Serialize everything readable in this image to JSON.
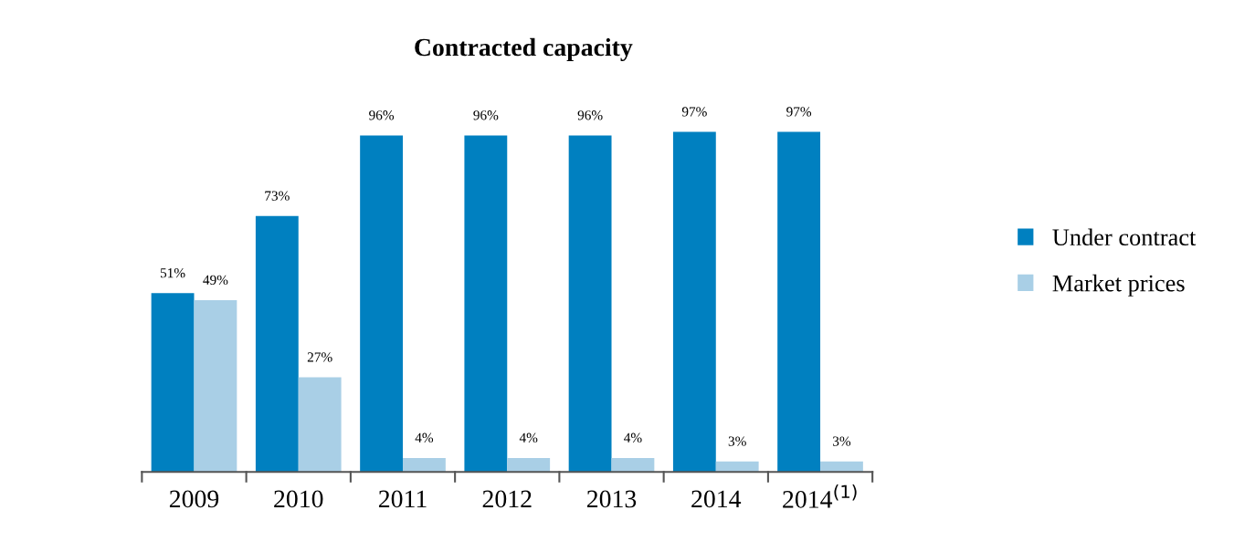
{
  "chart_data": {
    "type": "bar",
    "title": "Contracted capacity",
    "categories": [
      "2009",
      "2010",
      "2011",
      "2012",
      "2013",
      "2014",
      "2014$^{(1)}$"
    ],
    "series": [
      {
        "name": "Under contract",
        "color": "#0080c0",
        "values": [
          51,
          73,
          96,
          96,
          96,
          97,
          97
        ],
        "value_labels": [
          "51%",
          "73%",
          "96%",
          "96%",
          "96%",
          "97%",
          "97%"
        ]
      },
      {
        "name": "Market prices",
        "color": "#a9cfe6",
        "values": [
          49,
          27,
          4,
          4,
          4,
          3,
          3
        ],
        "value_labels": [
          "49%",
          "27%",
          "4%",
          "4%",
          "4%",
          "3%",
          "3%"
        ]
      }
    ],
    "legend": "right",
    "grid": false,
    "tick_labels": "x"
  }
}
